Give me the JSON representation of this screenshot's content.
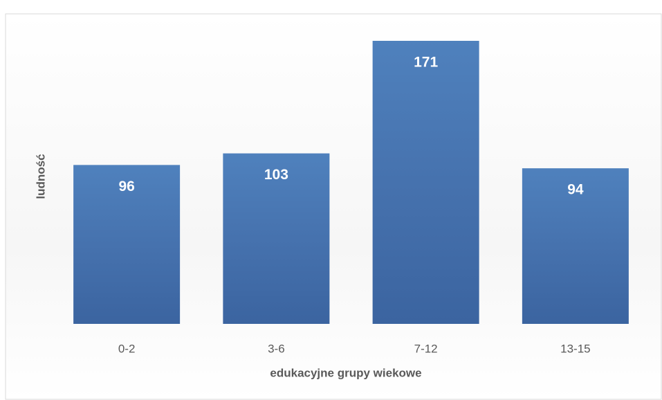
{
  "chart_data": {
    "type": "bar",
    "x_label": "edukacyjne grupy wiekowe",
    "y_label": "ludność",
    "categories": [
      "0-2",
      "3-6",
      "7-12",
      "13-15"
    ],
    "values": [
      96,
      103,
      171,
      94
    ],
    "color": "#4f81bd"
  }
}
